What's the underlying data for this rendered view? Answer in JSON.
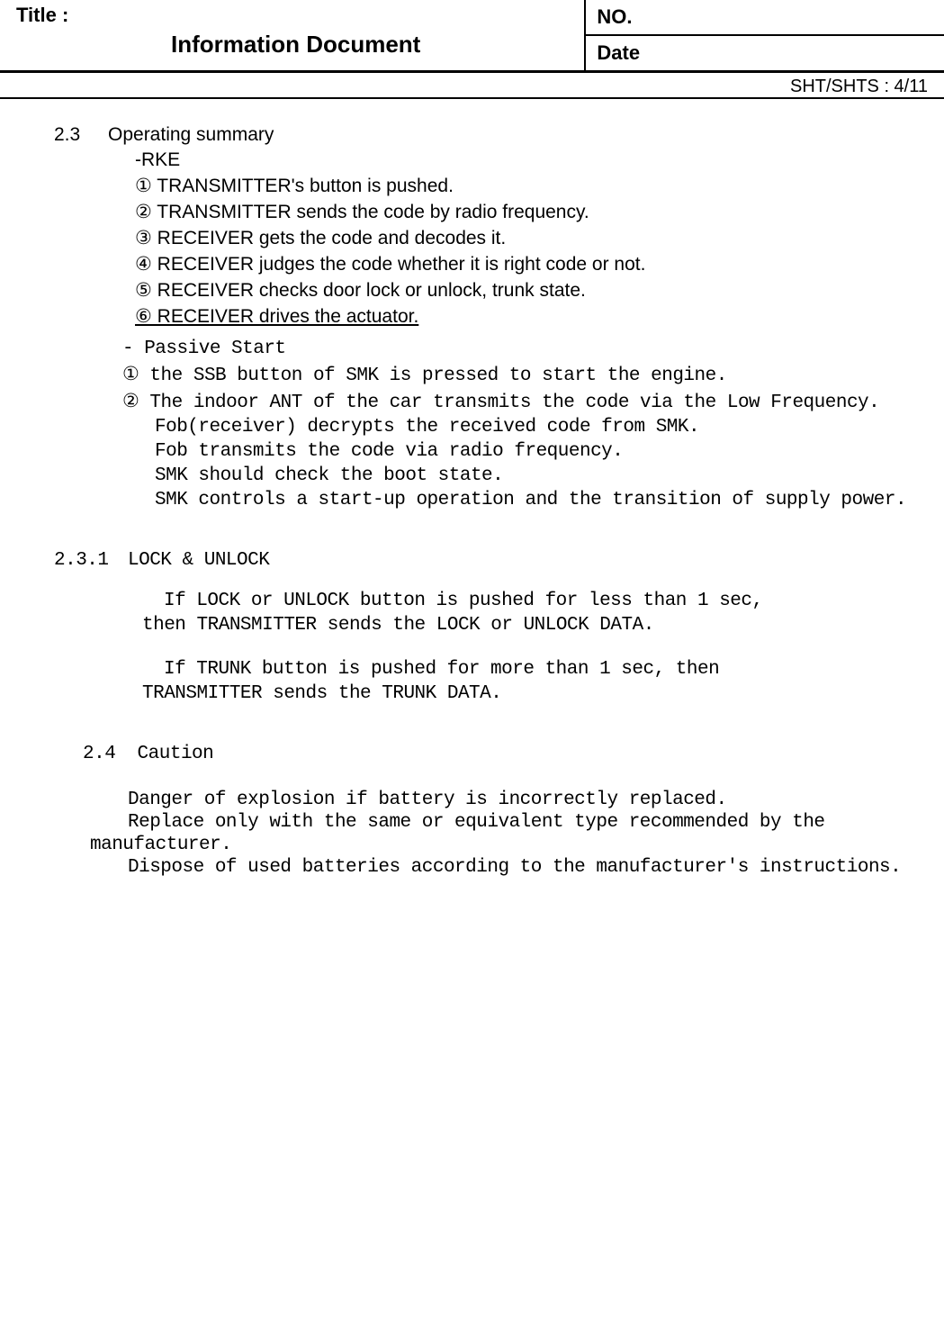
{
  "header": {
    "title_label": "Title :",
    "doc_title": "Information Document",
    "no_label": "NO.",
    "date_label": "Date",
    "sht": "SHT/SHTS : 4/11"
  },
  "sec23": {
    "num": "2.3",
    "title": "Operating summary",
    "rke": {
      "heading": "-RKE",
      "items": [
        "① TRANSMITTER's button is pushed.",
        "② TRANSMITTER sends the code by radio frequency.",
        "③ RECEIVER gets the code and decodes it.",
        "④ RECEIVER judges the code whether it is right code or not.",
        "⑤ RECEIVER checks door lock or unlock, trunk state.",
        "⑥ RECEIVER drives the actuator."
      ]
    },
    "passive": {
      "heading": "- Passive Start",
      "items": [
        "① the SSB button of SMK is pressed to start the engine.",
        "② The indoor ANT of the car transmits the code via the Low Frequency.",
        "   Fob(receiver) decrypts the received code from SMK.",
        "   Fob transmits the code via radio frequency.",
        "   SMK should check the boot state.",
        "   SMK controls a start-up operation and the transition of supply power."
      ]
    }
  },
  "sec231": {
    "num": "2.3.1",
    "title": "LOCK & UNLOCK",
    "p1a": "   If LOCK or UNLOCK button is pushed for less than 1 sec,",
    "p1b": "then TRANSMITTER sends the LOCK or UNLOCK DATA.",
    "p2a": "   If TRUNK button is pushed for more than 1 sec, then",
    "p2b": "TRANSMITTER sends the TRUNK DATA."
  },
  "sec24": {
    "num": "2.4",
    "title": "Caution",
    "items": [
      "   Danger of explosion if battery is incorrectly replaced.",
      "   Replace only with the same or equivalent type recommended by the",
      "manufacturer.",
      "   Dispose of used batteries according to the manufacturer's instructions."
    ]
  },
  "colors": {
    "text": "#000000",
    "background": "#ffffff",
    "border": "#000000"
  },
  "fonts": {
    "sans_size_pt": 16,
    "mono_size_pt": 16,
    "title_size_pt": 20
  }
}
